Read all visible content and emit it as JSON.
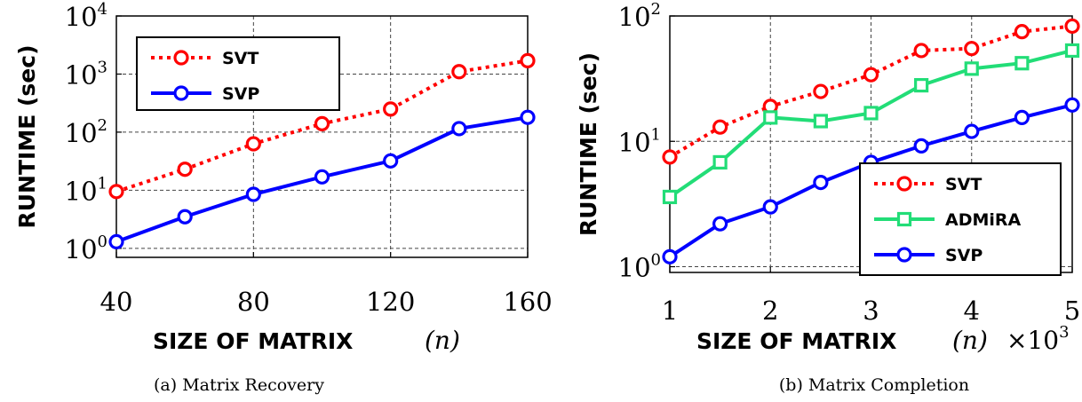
{
  "chart_data": [
    {
      "type": "line",
      "title": "",
      "caption": "(a) Matrix Recovery",
      "xlabel": "SIZE OF MATRIX",
      "xlabel_var": "(n)",
      "ylabel": "RUNTIME (sec)",
      "yscale": "log",
      "xlim": [
        40,
        160
      ],
      "ylim": [
        0.7,
        10000
      ],
      "x_ticks": [
        40,
        80,
        120,
        160
      ],
      "x_tick_labels": [
        "40",
        "80",
        "120",
        "160"
      ],
      "y_ticks": [
        1,
        10,
        100,
        1000,
        10000
      ],
      "y_tick_labels": [
        {
          "base": "10",
          "exp": "0"
        },
        {
          "base": "10",
          "exp": "1"
        },
        {
          "base": "10",
          "exp": "2"
        },
        {
          "base": "10",
          "exp": "3"
        },
        {
          "base": "10",
          "exp": "4"
        }
      ],
      "grid": true,
      "legend_position": "top-left",
      "x": [
        40,
        60,
        80,
        100,
        120,
        140,
        160
      ],
      "series": [
        {
          "name": "SVT",
          "color": "#ff0000",
          "style": "dotted",
          "marker": "circle",
          "values": [
            9.5,
            23,
            63,
            140,
            250,
            1100,
            1700
          ]
        },
        {
          "name": "SVP",
          "color": "#0000ff",
          "style": "solid",
          "marker": "circle",
          "values": [
            1.3,
            3.5,
            8.5,
            17,
            32,
            115,
            180
          ]
        }
      ]
    },
    {
      "type": "line",
      "title": "",
      "caption": "(b) Matrix Completion",
      "xlabel": "SIZE OF MATRIX",
      "xlabel_var": "(n)",
      "xlabel_scale": {
        "times": "×",
        "base": "10",
        "exp": "3"
      },
      "ylabel": "RUNTIME (sec)",
      "yscale": "log",
      "xlim": [
        1,
        5
      ],
      "ylim": [
        0.9,
        100
      ],
      "x_ticks": [
        1,
        2,
        3,
        4,
        5
      ],
      "x_tick_labels": [
        "1",
        "2",
        "3",
        "4",
        "5"
      ],
      "y_ticks": [
        1,
        10,
        100
      ],
      "y_tick_labels": [
        {
          "base": "10",
          "exp": "0"
        },
        {
          "base": "10",
          "exp": "1"
        },
        {
          "base": "10",
          "exp": "2"
        }
      ],
      "grid": true,
      "legend_position": "bottom-right",
      "x": [
        1,
        1.5,
        2,
        2.5,
        3,
        3.5,
        4,
        4.5,
        5
      ],
      "series": [
        {
          "name": "SVT",
          "color": "#ff0000",
          "style": "dotted",
          "marker": "circle",
          "values": [
            7.5,
            13,
            19,
            25,
            34,
            53,
            55,
            75,
            83
          ]
        },
        {
          "name": "ADMiRA",
          "color": "#22dd77",
          "style": "solid",
          "marker": "square",
          "values": [
            3.6,
            6.8,
            15.5,
            14.5,
            16.8,
            28,
            38,
            42,
            53
          ]
        },
        {
          "name": "SVP",
          "color": "#0000ff",
          "style": "solid",
          "marker": "circle",
          "values": [
            1.2,
            2.2,
            3,
            4.7,
            6.8,
            9.2,
            12,
            15.5,
            19.5
          ]
        }
      ]
    }
  ]
}
